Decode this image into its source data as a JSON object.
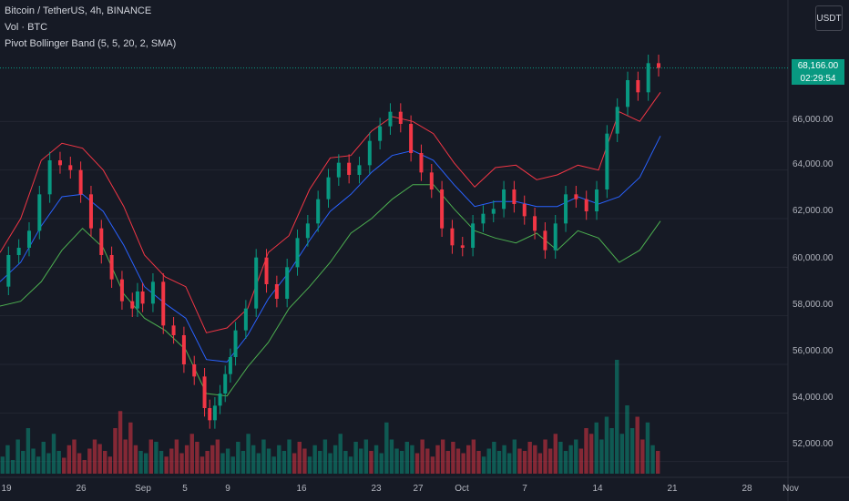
{
  "header": {
    "symbol_line": "Bitcoin / TetherUS, 4h, BINANCE",
    "volume_line": "Vol · BTC",
    "indicator_line": "Pivot Bollinger Band (5, 5, 20, 2, SMA)"
  },
  "currency_button": "USDT",
  "last_price": {
    "value": "68,166.00",
    "countdown": "02:29:54"
  },
  "colors": {
    "background": "#161a25",
    "grid": "#232632",
    "up": "#089981",
    "down": "#f23645",
    "upper_band": "#f23645",
    "middle_band": "#2962ff",
    "lower_band": "#4caf50"
  },
  "y_axis": {
    "ticks": [
      "66,000.00",
      "64,000.00",
      "62,000.00",
      "60,000.00",
      "58,000.00",
      "56,000.00",
      "54,000.00",
      "52,000.00"
    ],
    "values": [
      66000,
      64000,
      62000,
      60000,
      58000,
      56000,
      54000,
      52000
    ]
  },
  "x_axis": {
    "ticks": [
      "19",
      "26",
      "Sep",
      "5",
      "9",
      "16",
      "23",
      "27",
      "Oct",
      "7",
      "14",
      "21",
      "28",
      "Nov"
    ]
  },
  "chart_data": {
    "type": "line",
    "title": "Bitcoin / TetherUS, 4h, BINANCE",
    "y_range": [
      51500,
      69500
    ],
    "x_labels": [
      "19",
      "26",
      "Sep",
      "5",
      "9",
      "16",
      "23",
      "27",
      "Oct",
      "7",
      "14",
      "21",
      "28",
      "Nov"
    ],
    "price_close": [
      [
        0,
        59200
      ],
      [
        2,
        60500
      ],
      [
        4,
        60800
      ],
      [
        6,
        61500
      ],
      [
        8,
        63000
      ],
      [
        10,
        64400
      ],
      [
        12,
        64200
      ],
      [
        14,
        64000
      ],
      [
        16,
        63000
      ],
      [
        18,
        61600
      ],
      [
        20,
        60500
      ],
      [
        22,
        59500
      ],
      [
        24,
        58600
      ],
      [
        26,
        58300
      ],
      [
        27,
        59000
      ],
      [
        28,
        58500
      ],
      [
        30,
        59400
      ],
      [
        32,
        57600
      ],
      [
        34,
        57200
      ],
      [
        36,
        56000
      ],
      [
        38,
        55500
      ],
      [
        40,
        54200
      ],
      [
        41,
        53700
      ],
      [
        42,
        54300
      ],
      [
        43,
        54800
      ],
      [
        44,
        55600
      ],
      [
        45,
        56300
      ],
      [
        46,
        57400
      ],
      [
        48,
        58300
      ],
      [
        50,
        60400
      ],
      [
        52,
        59300
      ],
      [
        54,
        58700
      ],
      [
        56,
        60000
      ],
      [
        58,
        61200
      ],
      [
        60,
        61800
      ],
      [
        62,
        62800
      ],
      [
        64,
        63700
      ],
      [
        66,
        64300
      ],
      [
        68,
        63800
      ],
      [
        70,
        64200
      ],
      [
        72,
        65200
      ],
      [
        74,
        65800
      ],
      [
        76,
        66400
      ],
      [
        78,
        65900
      ],
      [
        80,
        64700
      ],
      [
        82,
        63900
      ],
      [
        84,
        63200
      ],
      [
        86,
        61600
      ],
      [
        88,
        60900
      ],
      [
        90,
        60800
      ],
      [
        92,
        61800
      ],
      [
        94,
        62200
      ],
      [
        96,
        62400
      ],
      [
        98,
        63200
      ],
      [
        100,
        62600
      ],
      [
        102,
        62100
      ],
      [
        104,
        61500
      ],
      [
        106,
        60700
      ],
      [
        108,
        61800
      ],
      [
        110,
        63000
      ],
      [
        112,
        62800
      ],
      [
        114,
        62300
      ],
      [
        116,
        63200
      ],
      [
        118,
        65500
      ],
      [
        120,
        66600
      ],
      [
        122,
        67700
      ],
      [
        124,
        67200
      ],
      [
        126,
        68400
      ],
      [
        128,
        68200
      ]
    ],
    "series": [
      {
        "name": "upper_band",
        "points": [
          [
            0,
            60600
          ],
          [
            4,
            62000
          ],
          [
            8,
            64400
          ],
          [
            12,
            65100
          ],
          [
            16,
            64900
          ],
          [
            20,
            64000
          ],
          [
            24,
            62500
          ],
          [
            28,
            60500
          ],
          [
            32,
            59600
          ],
          [
            36,
            59200
          ],
          [
            40,
            57300
          ],
          [
            44,
            57500
          ],
          [
            48,
            58300
          ],
          [
            52,
            60600
          ],
          [
            56,
            61300
          ],
          [
            60,
            63200
          ],
          [
            64,
            64500
          ],
          [
            68,
            64600
          ],
          [
            72,
            65600
          ],
          [
            76,
            66200
          ],
          [
            80,
            66000
          ],
          [
            84,
            65500
          ],
          [
            88,
            64300
          ],
          [
            92,
            63300
          ],
          [
            96,
            64100
          ],
          [
            100,
            64200
          ],
          [
            104,
            63600
          ],
          [
            108,
            63800
          ],
          [
            112,
            64200
          ],
          [
            116,
            64000
          ],
          [
            120,
            66400
          ],
          [
            124,
            66000
          ],
          [
            128,
            67200
          ]
        ]
      },
      {
        "name": "middle_band",
        "points": [
          [
            0,
            59400
          ],
          [
            4,
            60200
          ],
          [
            8,
            61700
          ],
          [
            12,
            62900
          ],
          [
            16,
            63000
          ],
          [
            20,
            62300
          ],
          [
            24,
            60900
          ],
          [
            28,
            59200
          ],
          [
            32,
            58500
          ],
          [
            36,
            57900
          ],
          [
            40,
            56200
          ],
          [
            44,
            56100
          ],
          [
            48,
            57200
          ],
          [
            52,
            58700
          ],
          [
            56,
            59800
          ],
          [
            60,
            61100
          ],
          [
            64,
            62300
          ],
          [
            68,
            63000
          ],
          [
            72,
            63900
          ],
          [
            76,
            64600
          ],
          [
            80,
            64800
          ],
          [
            84,
            64400
          ],
          [
            88,
            63400
          ],
          [
            92,
            62500
          ],
          [
            96,
            62700
          ],
          [
            100,
            62700
          ],
          [
            104,
            62500
          ],
          [
            108,
            62500
          ],
          [
            112,
            62900
          ],
          [
            116,
            62600
          ],
          [
            120,
            62900
          ],
          [
            124,
            63700
          ],
          [
            128,
            65400
          ]
        ]
      },
      {
        "name": "lower_band",
        "points": [
          [
            0,
            58400
          ],
          [
            4,
            58600
          ],
          [
            8,
            59400
          ],
          [
            12,
            60700
          ],
          [
            16,
            61600
          ],
          [
            20,
            60800
          ],
          [
            24,
            58900
          ],
          [
            28,
            57900
          ],
          [
            32,
            57400
          ],
          [
            36,
            56600
          ],
          [
            40,
            54800
          ],
          [
            44,
            54700
          ],
          [
            48,
            55900
          ],
          [
            52,
            56900
          ],
          [
            56,
            58300
          ],
          [
            60,
            59200
          ],
          [
            64,
            60200
          ],
          [
            68,
            61400
          ],
          [
            72,
            62000
          ],
          [
            76,
            62800
          ],
          [
            80,
            63400
          ],
          [
            84,
            63400
          ],
          [
            88,
            62400
          ],
          [
            92,
            61500
          ],
          [
            96,
            61200
          ],
          [
            100,
            61000
          ],
          [
            104,
            61400
          ],
          [
            108,
            60700
          ],
          [
            112,
            61500
          ],
          [
            116,
            61200
          ],
          [
            120,
            60200
          ],
          [
            124,
            60700
          ],
          [
            128,
            61900
          ]
        ]
      }
    ],
    "volume_relative": [
      0.15,
      0.25,
      0.12,
      0.3,
      0.2,
      0.4,
      0.22,
      0.15,
      0.28,
      0.18,
      0.35,
      0.2,
      0.14,
      0.25,
      0.3,
      0.18,
      0.12,
      0.22,
      0.3,
      0.26,
      0.2,
      0.15,
      0.4,
      0.55,
      0.3,
      0.45,
      0.25,
      0.2,
      0.18,
      0.3,
      0.28,
      0.2,
      0.15,
      0.22,
      0.3,
      0.18,
      0.25,
      0.35,
      0.28,
      0.15,
      0.2,
      0.25,
      0.3,
      0.18,
      0.22,
      0.15,
      0.28,
      0.2,
      0.35,
      0.25,
      0.18,
      0.3,
      0.22,
      0.15,
      0.25,
      0.2,
      0.3,
      0.18,
      0.28,
      0.22,
      0.15,
      0.25,
      0.2,
      0.3,
      0.18,
      0.25,
      0.35,
      0.2,
      0.15,
      0.28,
      0.22,
      0.3,
      0.2,
      0.25,
      0.18,
      0.45,
      0.3,
      0.22,
      0.2,
      0.28,
      0.25,
      0.18,
      0.3,
      0.22,
      0.15,
      0.25,
      0.3,
      0.2,
      0.28,
      0.22,
      0.18,
      0.25,
      0.3,
      0.2,
      0.15,
      0.22,
      0.28,
      0.2,
      0.25,
      0.18,
      0.3,
      0.22,
      0.2,
      0.28,
      0.25,
      0.18,
      0.3,
      0.22,
      0.35,
      0.28,
      0.2,
      0.25,
      0.3,
      0.22,
      0.4,
      0.35,
      0.45,
      0.3,
      0.5,
      0.4,
      1.0,
      0.35,
      0.6,
      0.4,
      0.5,
      0.3,
      0.45,
      0.25,
      0.2
    ],
    "ylabel": "",
    "xlabel": "",
    "grid": true,
    "legend": "top-left"
  }
}
